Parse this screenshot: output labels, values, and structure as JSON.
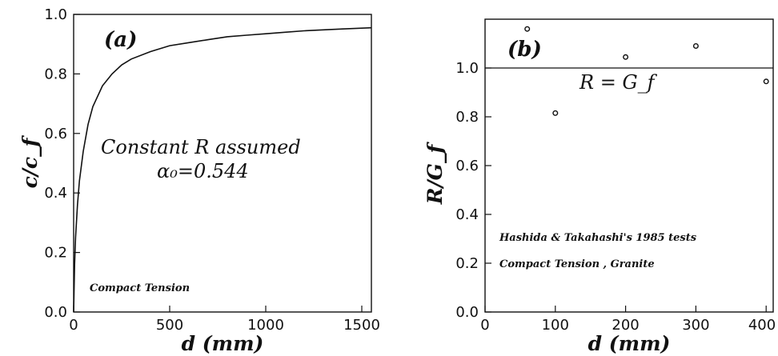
{
  "chart_data": [
    {
      "type": "line",
      "panel_label": "(a)",
      "xlabel": "d (mm)",
      "ylabel": "c/c_f",
      "xlim": [
        0,
        1550
      ],
      "ylim": [
        0,
        1.0
      ],
      "x_ticks": [
        "0",
        "500",
        "1000",
        "1500"
      ],
      "y_ticks": [
        "0.0",
        "0.2",
        "0.4",
        "0.6",
        "0.8",
        "1.0"
      ],
      "annotations": {
        "main": "Constant R assumed",
        "alpha": "α₀=0.544",
        "specimen": "Compact Tension"
      },
      "grid": false,
      "legend": "none",
      "series": [
        {
          "x": [
            0,
            5,
            10,
            20,
            30,
            50,
            75,
            100,
            150,
            200,
            250,
            300,
            400,
            500,
            600,
            700,
            800,
            900,
            1000,
            1100,
            1200,
            1300,
            1400,
            1550
          ],
          "values": [
            0.0,
            0.16,
            0.25,
            0.36,
            0.44,
            0.54,
            0.63,
            0.69,
            0.76,
            0.8,
            0.83,
            0.85,
            0.875,
            0.895,
            0.905,
            0.915,
            0.925,
            0.93,
            0.935,
            0.94,
            0.945,
            0.948,
            0.951,
            0.955
          ]
        }
      ]
    },
    {
      "type": "scatter",
      "panel_label": "(b)",
      "xlabel": "d (mm)",
      "ylabel": "R/G_f",
      "xlim": [
        0,
        410
      ],
      "ylim": [
        0,
        1.2
      ],
      "x_ticks": [
        "0",
        "100",
        "200",
        "300",
        "400"
      ],
      "y_ticks": [
        "0.0",
        "0.2",
        "0.4",
        "0.6",
        "0.8",
        "1.0"
      ],
      "annotations": {
        "reference": "R = G_f",
        "source": "Hashida & Takahashi's 1985 tests",
        "specimen": "Compact Tension , Granite"
      },
      "reference_line_y": 1.0,
      "grid": false,
      "legend": "none",
      "series": [
        {
          "x": [
            60,
            100,
            200,
            300,
            400
          ],
          "values": [
            1.16,
            0.815,
            1.045,
            1.09,
            0.945
          ]
        }
      ]
    }
  ]
}
